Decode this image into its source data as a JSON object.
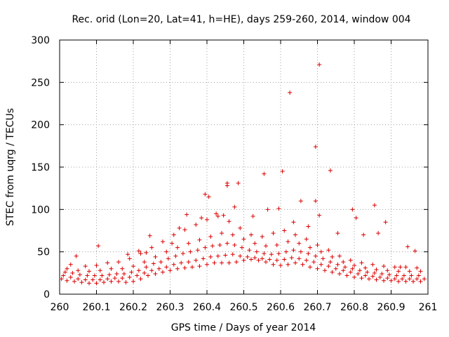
{
  "chart_data": {
    "type": "scatter",
    "title": "Rec. orid (Lon=20, Lat=41, h=HE), days 259-260, 2014, window 004",
    "xlabel": "GPS time / Days of year 2014",
    "ylabel": "STEC from uqrg / TECUs",
    "xlim": [
      260,
      261
    ],
    "ylim": [
      0,
      300
    ],
    "xticks": [
      260,
      260.1,
      260.2,
      260.3,
      260.4,
      260.5,
      260.6,
      260.7,
      260.8,
      260.9,
      261
    ],
    "xtick_labels": [
      "260",
      "260.1",
      "260.2",
      "260.3",
      "260.4",
      "260.5",
      "260.6",
      "260.7",
      "260.8",
      "260.9",
      "261"
    ],
    "yticks": [
      0,
      50,
      100,
      150,
      200,
      250,
      300
    ],
    "ytick_labels": [
      "0",
      "50",
      "100",
      "150",
      "200",
      "250",
      "300"
    ],
    "grid": true,
    "marker": "+",
    "color": "#dd0000",
    "series": [
      {
        "name": "STEC",
        "points": [
          [
            260.005,
            18
          ],
          [
            260.02,
            16
          ],
          [
            260.04,
            15
          ],
          [
            260.06,
            14
          ],
          [
            260.08,
            13
          ],
          [
            260.1,
            13
          ],
          [
            260.12,
            14
          ],
          [
            260.14,
            15
          ],
          [
            260.16,
            15
          ],
          [
            260.18,
            14
          ],
          [
            260.2,
            15
          ],
          [
            260.22,
            18
          ],
          [
            260.24,
            22
          ],
          [
            260.26,
            24
          ],
          [
            260.28,
            26
          ],
          [
            260.3,
            28
          ],
          [
            260.32,
            30
          ],
          [
            260.34,
            31
          ],
          [
            260.36,
            32
          ],
          [
            260.38,
            33
          ],
          [
            260.4,
            35
          ],
          [
            260.42,
            37
          ],
          [
            260.44,
            37
          ],
          [
            260.46,
            37
          ],
          [
            260.48,
            38
          ],
          [
            260.5,
            40
          ],
          [
            260.52,
            41
          ],
          [
            260.54,
            40
          ],
          [
            260.56,
            38
          ],
          [
            260.58,
            35
          ],
          [
            260.6,
            34
          ],
          [
            260.62,
            35
          ],
          [
            260.64,
            37
          ],
          [
            260.66,
            35
          ],
          [
            260.68,
            32
          ],
          [
            260.7,
            30
          ],
          [
            260.72,
            28
          ],
          [
            260.74,
            26
          ],
          [
            260.76,
            24
          ],
          [
            260.78,
            22
          ],
          [
            260.8,
            20
          ],
          [
            260.82,
            19
          ],
          [
            260.84,
            18
          ],
          [
            260.86,
            17
          ],
          [
            260.88,
            16
          ],
          [
            260.9,
            16
          ],
          [
            260.92,
            15
          ],
          [
            260.94,
            15
          ],
          [
            260.96,
            15
          ],
          [
            260.98,
            15
          ],
          [
            260.01,
            22
          ],
          [
            260.03,
            20
          ],
          [
            260.05,
            18
          ],
          [
            260.07,
            17
          ],
          [
            260.09,
            17
          ],
          [
            260.11,
            17
          ],
          [
            260.13,
            18
          ],
          [
            260.15,
            19
          ],
          [
            260.17,
            19
          ],
          [
            260.19,
            20
          ],
          [
            260.21,
            22
          ],
          [
            260.23,
            25
          ],
          [
            260.25,
            28
          ],
          [
            260.27,
            30
          ],
          [
            260.29,
            32
          ],
          [
            260.31,
            35
          ],
          [
            260.33,
            37
          ],
          [
            260.35,
            38
          ],
          [
            260.37,
            40
          ],
          [
            260.39,
            42
          ],
          [
            260.41,
            44
          ],
          [
            260.43,
            45
          ],
          [
            260.45,
            46
          ],
          [
            260.47,
            47
          ],
          [
            260.49,
            45
          ],
          [
            260.51,
            44
          ],
          [
            260.53,
            43
          ],
          [
            260.55,
            42
          ],
          [
            260.57,
            41
          ],
          [
            260.59,
            40
          ],
          [
            260.61,
            41
          ],
          [
            260.63,
            43
          ],
          [
            260.65,
            42
          ],
          [
            260.67,
            40
          ],
          [
            260.69,
            38
          ],
          [
            260.71,
            35
          ],
          [
            260.73,
            33
          ],
          [
            260.75,
            30
          ],
          [
            260.77,
            28
          ],
          [
            260.79,
            26
          ],
          [
            260.81,
            24
          ],
          [
            260.83,
            22
          ],
          [
            260.85,
            21
          ],
          [
            260.87,
            20
          ],
          [
            260.89,
            19
          ],
          [
            260.91,
            18
          ],
          [
            260.93,
            18
          ],
          [
            260.95,
            18
          ],
          [
            260.97,
            18
          ],
          [
            260.99,
            18
          ],
          [
            260.015,
            26
          ],
          [
            260.035,
            25
          ],
          [
            260.055,
            23
          ],
          [
            260.075,
            22
          ],
          [
            260.095,
            22
          ],
          [
            260.115,
            22
          ],
          [
            260.135,
            23
          ],
          [
            260.155,
            24
          ],
          [
            260.175,
            24
          ],
          [
            260.195,
            26
          ],
          [
            260.215,
            28
          ],
          [
            260.235,
            32
          ],
          [
            260.255,
            36
          ],
          [
            260.275,
            38
          ],
          [
            260.295,
            42
          ],
          [
            260.315,
            45
          ],
          [
            260.335,
            48
          ],
          [
            260.355,
            50
          ],
          [
            260.375,
            52
          ],
          [
            260.395,
            55
          ],
          [
            260.415,
            57
          ],
          [
            260.435,
            58
          ],
          [
            260.455,
            60
          ],
          [
            260.475,
            58
          ],
          [
            260.495,
            55
          ],
          [
            260.515,
            52
          ],
          [
            260.535,
            50
          ],
          [
            260.555,
            48
          ],
          [
            260.575,
            47
          ],
          [
            260.595,
            48
          ],
          [
            260.615,
            50
          ],
          [
            260.635,
            52
          ],
          [
            260.655,
            50
          ],
          [
            260.675,
            48
          ],
          [
            260.695,
            45
          ],
          [
            260.715,
            42
          ],
          [
            260.735,
            38
          ],
          [
            260.755,
            35
          ],
          [
            260.775,
            32
          ],
          [
            260.795,
            30
          ],
          [
            260.815,
            28
          ],
          [
            260.835,
            26
          ],
          [
            260.855,
            25
          ],
          [
            260.875,
            24
          ],
          [
            260.895,
            23
          ],
          [
            260.915,
            22
          ],
          [
            260.935,
            22
          ],
          [
            260.955,
            22
          ],
          [
            260.975,
            22
          ],
          [
            260.02,
            30
          ],
          [
            260.05,
            28
          ],
          [
            260.08,
            27
          ],
          [
            260.11,
            28
          ],
          [
            260.14,
            30
          ],
          [
            260.17,
            30
          ],
          [
            260.2,
            33
          ],
          [
            260.23,
            38
          ],
          [
            260.26,
            44
          ],
          [
            260.29,
            50
          ],
          [
            260.32,
            55
          ],
          [
            260.35,
            60
          ],
          [
            260.38,
            64
          ],
          [
            260.41,
            68
          ],
          [
            260.44,
            72
          ],
          [
            260.47,
            70
          ],
          [
            260.5,
            65
          ],
          [
            260.53,
            60
          ],
          [
            260.56,
            57
          ],
          [
            260.59,
            58
          ],
          [
            260.62,
            62
          ],
          [
            260.65,
            60
          ],
          [
            260.68,
            55
          ],
          [
            260.71,
            50
          ],
          [
            260.74,
            44
          ],
          [
            260.77,
            38
          ],
          [
            260.8,
            34
          ],
          [
            260.83,
            31
          ],
          [
            260.86,
            29
          ],
          [
            260.89,
            28
          ],
          [
            260.92,
            27
          ],
          [
            260.95,
            27
          ],
          [
            260.98,
            27
          ],
          [
            260.03,
            35
          ],
          [
            260.07,
            33
          ],
          [
            260.1,
            34
          ],
          [
            260.13,
            37
          ],
          [
            260.16,
            38
          ],
          [
            260.19,
            42
          ],
          [
            260.22,
            48
          ],
          [
            260.25,
            55
          ],
          [
            260.28,
            62
          ],
          [
            260.31,
            70
          ],
          [
            260.34,
            76
          ],
          [
            260.37,
            82
          ],
          [
            260.4,
            88
          ],
          [
            260.43,
            92
          ],
          [
            260.46,
            86
          ],
          [
            260.49,
            78
          ],
          [
            260.52,
            70
          ],
          [
            260.55,
            68
          ],
          [
            260.58,
            72
          ],
          [
            260.61,
            75
          ],
          [
            260.64,
            70
          ],
          [
            260.67,
            65
          ],
          [
            260.7,
            58
          ],
          [
            260.73,
            52
          ],
          [
            260.76,
            45
          ],
          [
            260.79,
            40
          ],
          [
            260.82,
            37
          ],
          [
            260.85,
            35
          ],
          [
            260.88,
            33
          ],
          [
            260.91,
            32
          ],
          [
            260.94,
            32
          ],
          [
            260.97,
            31
          ],
          [
            260.045,
            45
          ],
          [
            260.105,
            57
          ],
          [
            260.185,
            47
          ],
          [
            260.215,
            51
          ],
          [
            260.235,
            49
          ],
          [
            260.245,
            69
          ],
          [
            260.305,
            60
          ],
          [
            260.325,
            78
          ],
          [
            260.345,
            94
          ],
          [
            260.385,
            90
          ],
          [
            260.395,
            118
          ],
          [
            260.405,
            115
          ],
          [
            260.425,
            95
          ],
          [
            260.445,
            93
          ],
          [
            260.455,
            128
          ],
          [
            260.455,
            131
          ],
          [
            260.475,
            103
          ],
          [
            260.485,
            131
          ],
          [
            260.525,
            92
          ],
          [
            260.555,
            142
          ],
          [
            260.565,
            100
          ],
          [
            260.595,
            101
          ],
          [
            260.605,
            145
          ],
          [
            260.625,
            238
          ],
          [
            260.635,
            85
          ],
          [
            260.655,
            110
          ],
          [
            260.675,
            80
          ],
          [
            260.695,
            174
          ],
          [
            260.695,
            110
          ],
          [
            260.705,
            271
          ],
          [
            260.705,
            93
          ],
          [
            260.735,
            146
          ],
          [
            260.755,
            72
          ],
          [
            260.795,
            100
          ],
          [
            260.805,
            90
          ],
          [
            260.825,
            70
          ],
          [
            260.855,
            105
          ],
          [
            260.865,
            72
          ],
          [
            260.885,
            85
          ],
          [
            260.925,
            32
          ],
          [
            260.945,
            56
          ],
          [
            260.965,
            51
          ]
        ]
      }
    ]
  }
}
